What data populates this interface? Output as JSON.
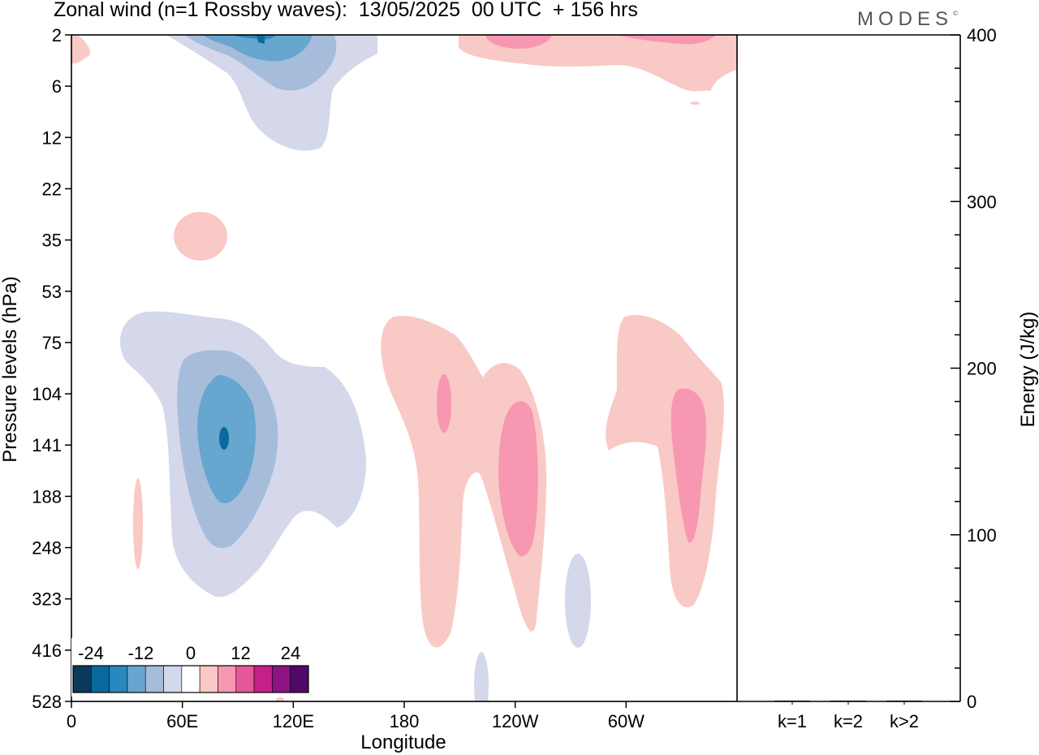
{
  "header": {
    "title": "Zonal wind (n=1 Rossby waves):  13/05/2025  00 UTC  + 156 hrs",
    "brand": "MODES",
    "brand_mark": "©"
  },
  "chart_data": [
    {
      "type": "heatmap",
      "variable": "Zonal wind",
      "xlabel": "Longitude",
      "ylabel": "Pressure levels (hPa)",
      "x_ticks": [
        "0",
        "60E",
        "120E",
        "180",
        "120W",
        "60W"
      ],
      "y_ticks": [
        "2",
        "6",
        "12",
        "22",
        "35",
        "53",
        "75",
        "104",
        "141",
        "188",
        "248",
        "323",
        "416",
        "528"
      ],
      "colorbar": {
        "levels": [
          -30,
          -25,
          -20,
          -15,
          -10,
          -5,
          5,
          10,
          15,
          20,
          25,
          30
        ],
        "labels": [
          "-24",
          "-12",
          "0",
          "12",
          "24"
        ],
        "colors": [
          "#0b3a5c",
          "#0a6aa0",
          "#2a88c0",
          "#66a6cf",
          "#a6bcdb",
          "#d4d8ea",
          "#ffffff",
          "#f9c9c5",
          "#f797b2",
          "#e55798",
          "#c71f88",
          "#8c1381",
          "#50096a"
        ]
      },
      "features": [
        {
          "sign": "negative",
          "center_lon": 82,
          "center_level": "141",
          "min_value": -25
        },
        {
          "sign": "negative",
          "center_lon": 90,
          "center_level": "2",
          "min_value": -20
        },
        {
          "sign": "positive",
          "center_lon": 235,
          "center_level": "141",
          "max_value": 15
        },
        {
          "sign": "positive",
          "center_lon": 318,
          "center_level": "141",
          "max_value": 15
        },
        {
          "sign": "positive",
          "center_lon": 190,
          "center_level": "104",
          "max_value": 15
        },
        {
          "sign": "positive",
          "center_lon": 250,
          "center_level": "2",
          "max_value": 15
        }
      ]
    },
    {
      "type": "bar",
      "variable": "Energy",
      "categories": [
        "k=1",
        "k=2",
        "k>2"
      ],
      "values": [
        0.5,
        0.3,
        0.5
      ],
      "ylabel": "Energy (J/kg)",
      "ylim": [
        0,
        400
      ],
      "y_ticks": [
        "0",
        "100",
        "200",
        "300",
        "400"
      ]
    }
  ]
}
